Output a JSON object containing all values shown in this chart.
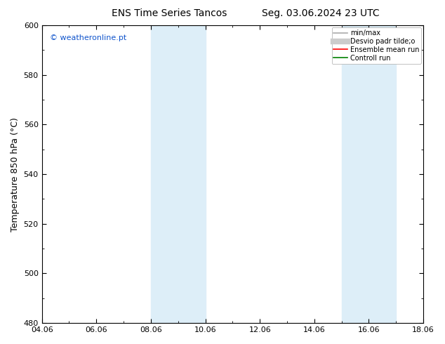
{
  "title_left": "ENS Time Series Tancos",
  "title_right": "Seg. 03.06.2024 23 UTC",
  "ylabel": "Temperature 850 hPa (°C)",
  "ylim": [
    480,
    600
  ],
  "yticks": [
    480,
    500,
    520,
    540,
    560,
    580,
    600
  ],
  "xtick_labels": [
    "04.06",
    "06.06",
    "08.06",
    "10.06",
    "12.06",
    "14.06",
    "16.06",
    "18.06"
  ],
  "xtick_positions_days": [
    0,
    2,
    4,
    6,
    8,
    10,
    12,
    14
  ],
  "total_days": 14,
  "shaded_bands": [
    {
      "xstart_days": 4.0,
      "xend_days": 6.0,
      "color": "#ddeef8"
    },
    {
      "xstart_days": 11.0,
      "xend_days": 13.0,
      "color": "#ddeef8"
    }
  ],
  "watermark": "© weatheronline.pt",
  "watermark_color": "#1155cc",
  "legend_entries": [
    {
      "label": "min/max",
      "color": "#aaaaaa",
      "lw": 1.2
    },
    {
      "label": "Desvio padr tilde;o",
      "color": "#cccccc",
      "lw": 6
    },
    {
      "label": "Ensemble mean run",
      "color": "#ff0000",
      "lw": 1.2
    },
    {
      "label": "Controll run",
      "color": "#008000",
      "lw": 1.2
    }
  ],
  "bg_color": "#ffffff",
  "plot_bg_color": "#ffffff",
  "title_fontsize": 10,
  "axis_label_fontsize": 9,
  "tick_fontsize": 8,
  "watermark_fontsize": 8,
  "legend_fontsize": 7
}
